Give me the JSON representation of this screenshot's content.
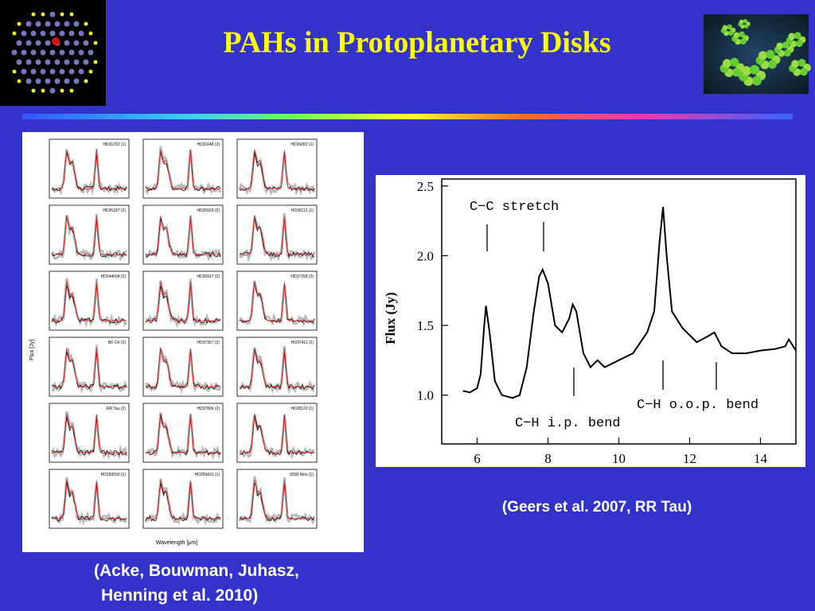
{
  "title": "PAHs in Protoplanetary Disks",
  "left_figure": {
    "y_label": "Flux [Jy]",
    "x_label": "Wavelength [μm]",
    "panels": [
      "HD31293 (1)",
      "HD31648 (2)",
      "HD34282 (1)",
      "HD35187 (2)",
      "HD35929 (2)",
      "HD36112 (1)",
      "HD244604 (2)",
      "HD36917 (2)",
      "HD37258 (2)",
      "BF Ori (2)",
      "HD37357 (2)",
      "HD37411 (2)",
      "RR Tau (2)",
      "HD37806 (2)",
      "HD38120 (1)",
      "HD250550 (1)",
      "HD259431 (1)",
      "V590 Mon (1)"
    ],
    "caption": [
      "(Acke, Bouwman, Juhasz,",
      "Henning et al. 2010)"
    ]
  },
  "right_figure": {
    "type": "line",
    "y_label": "Flux (Jy)",
    "annotations": [
      "C−C stretch",
      "C−H i.p. bend",
      "C−H o.o.p. bend"
    ],
    "x": [
      5.6,
      5.8,
      6.0,
      6.1,
      6.2,
      6.25,
      6.35,
      6.5,
      6.7,
      7.0,
      7.2,
      7.4,
      7.6,
      7.75,
      7.85,
      8.0,
      8.2,
      8.4,
      8.6,
      8.7,
      8.8,
      9.0,
      9.2,
      9.4,
      9.6,
      10.0,
      10.4,
      10.8,
      11.0,
      11.15,
      11.25,
      11.35,
      11.5,
      11.8,
      12.2,
      12.5,
      12.7,
      12.9,
      13.2,
      13.6,
      14.0,
      14.4,
      14.7,
      14.8,
      15.0
    ],
    "y": [
      1.03,
      1.02,
      1.05,
      1.15,
      1.5,
      1.64,
      1.45,
      1.1,
      1.0,
      0.98,
      1.0,
      1.2,
      1.6,
      1.85,
      1.9,
      1.8,
      1.5,
      1.45,
      1.55,
      1.65,
      1.6,
      1.3,
      1.2,
      1.25,
      1.2,
      1.25,
      1.3,
      1.45,
      1.6,
      2.1,
      2.35,
      2.0,
      1.6,
      1.48,
      1.38,
      1.42,
      1.45,
      1.35,
      1.3,
      1.3,
      1.32,
      1.33,
      1.35,
      1.4,
      1.32
    ],
    "color": "#000000",
    "xlim": [
      5,
      15
    ],
    "ylim": [
      0.65,
      2.55
    ],
    "xticks": [
      6,
      8,
      10,
      12,
      14
    ],
    "yticks": [
      {
        "value": 1,
        "label": "1.0"
      },
      1.5,
      {
        "value": 2,
        "label": "2.0"
      },
      2.5
    ],
    "caption": "(Geers et al. 2007, RR Tau)"
  }
}
